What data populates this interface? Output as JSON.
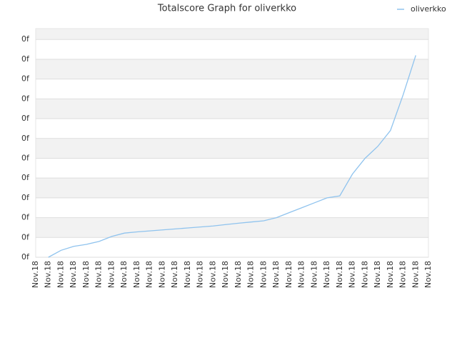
{
  "chart_data": {
    "type": "line",
    "title": "Totalscore Graph for oliverkko",
    "categories": [
      "Nov.18",
      "Nov.18",
      "Nov.18",
      "Nov.18",
      "Nov.18",
      "Nov.18",
      "Nov.18",
      "Nov.18",
      "Nov.18",
      "Nov.18",
      "Nov.18",
      "Nov.18",
      "Nov.18",
      "Nov.18",
      "Nov.18",
      "Nov.18",
      "Nov.18",
      "Nov.18",
      "Nov.18",
      "Nov.18",
      "Nov.18",
      "Nov.18",
      "Nov.18",
      "Nov.18",
      "Nov.18",
      "Nov.18",
      "Nov.18",
      "Nov.18",
      "Nov.18",
      "Nov.18",
      "Nov.18",
      "Nov.18"
    ],
    "series": [
      {
        "name": "oliverkko",
        "color": "#8fc3ee",
        "values": [
          null,
          0,
          0.35,
          0.55,
          0.65,
          0.8,
          1.05,
          1.22,
          1.28,
          1.33,
          1.38,
          1.43,
          1.48,
          1.53,
          1.58,
          1.65,
          1.72,
          1.78,
          1.84,
          2.0,
          2.25,
          2.5,
          2.75,
          3.0,
          3.1,
          4.2,
          5.0,
          5.6,
          6.4,
          8.2,
          10.2,
          null
        ]
      }
    ],
    "ylim": [
      0,
      11.55
    ],
    "yticks": [
      {
        "value": 0,
        "label": "0f"
      },
      {
        "value": 1,
        "label": "0f"
      },
      {
        "value": 2,
        "label": "0f"
      },
      {
        "value": 3,
        "label": "0f"
      },
      {
        "value": 4,
        "label": "0f"
      },
      {
        "value": 5,
        "label": "0f"
      },
      {
        "value": 6,
        "label": "0f"
      },
      {
        "value": 7,
        "label": "0f"
      },
      {
        "value": 8,
        "label": "0f"
      },
      {
        "value": 9,
        "label": "0f"
      },
      {
        "value": 10,
        "label": "0f"
      },
      {
        "value": 11,
        "label": "0f"
      }
    ],
    "grid": true,
    "legend": "top-right"
  }
}
